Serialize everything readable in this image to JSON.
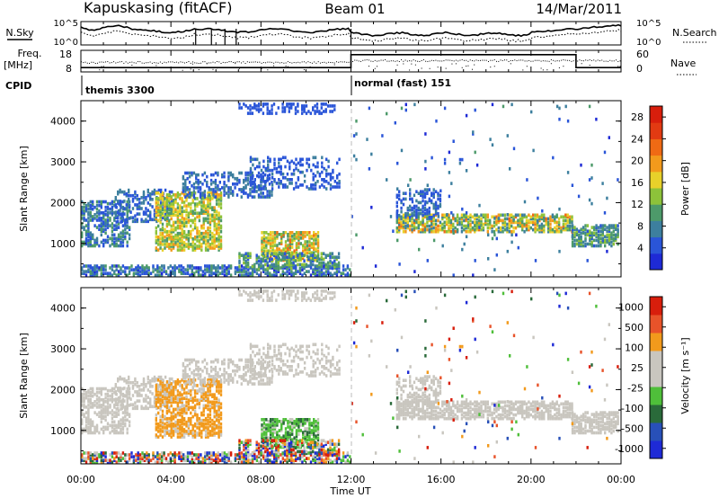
{
  "header": {
    "station": "Kapuskasing (fitACF)",
    "beam": "Beam 01",
    "date": "14/Mar/2011"
  },
  "colors": {
    "power": [
      "#1e2ad6",
      "#2a55d8",
      "#3d7f9e",
      "#4d9a6a",
      "#8dc23a",
      "#e8d12a",
      "#f29a1c",
      "#ef6a14",
      "#e23a12",
      "#d81e0c"
    ],
    "velocity_sections": [
      "#d81e0c",
      "#e8532a",
      "#f29a1c",
      "#c9c6bf",
      "#c9c6bf",
      "#4fbf3a",
      "#2a6a3a",
      "#2850b8",
      "#1e2ad6"
    ],
    "ground_scatter": "#c9c6bf"
  },
  "chart_data": [
    {
      "type": "line",
      "name_left": "N.Sky",
      "name_right": "N.Search",
      "yticks_left": [
        "10^5",
        "10^0"
      ],
      "yticks_right": [
        "10^5",
        "10^0"
      ],
      "x_range_hours": [
        0,
        24
      ]
    },
    {
      "type": "line",
      "label_left": "Freq.",
      "unit_left": "[MHz]",
      "label_right": "Nave",
      "yticks_left": [
        "18",
        "8"
      ],
      "yticks_right": [
        "60",
        "0"
      ],
      "freq_steps": [
        {
          "from": 0,
          "to": 12,
          "value": 10
        },
        {
          "from": 12,
          "to": 22,
          "value": 16
        },
        {
          "from": 22,
          "to": 24,
          "value": 10
        }
      ]
    },
    {
      "type": "table",
      "label": "CPID",
      "segments": [
        {
          "from_hour": 0,
          "to_hour": 12,
          "text": "themis 3300"
        },
        {
          "from_hour": 12,
          "to_hour": 24,
          "text": "normal (fast) 151"
        }
      ]
    },
    {
      "type": "heatmap",
      "ylabel": "Slant Range [km]",
      "yticks": [
        "4000",
        "3000",
        "2000",
        "1000"
      ],
      "ylim": [
        180,
        4500
      ],
      "xlim": [
        0,
        24
      ],
      "colorbar_label": "Power [dB]",
      "colorbar_ticks": [
        "28",
        "24",
        "20",
        "16",
        "12",
        "8",
        "4"
      ],
      "colorbar_range": [
        0,
        30
      ]
    },
    {
      "type": "heatmap",
      "ylabel": "Slant Range [km]",
      "yticks": [
        "4000",
        "3000",
        "2000",
        "1000"
      ],
      "ylim": [
        180,
        4500
      ],
      "xlim": [
        0,
        24
      ],
      "colorbar_label": "Velocity [m s⁻¹]",
      "colorbar_ticks": [
        "1000",
        "500",
        "100",
        "25",
        "-25",
        "-100",
        "-500",
        "-1000"
      ],
      "colorbar_range": [
        -1000,
        1000
      ]
    }
  ],
  "xaxis": {
    "label": "Time UT",
    "ticks": [
      "00:00",
      "04:00",
      "08:00",
      "12:00",
      "16:00",
      "20:00",
      "00:00"
    ]
  }
}
